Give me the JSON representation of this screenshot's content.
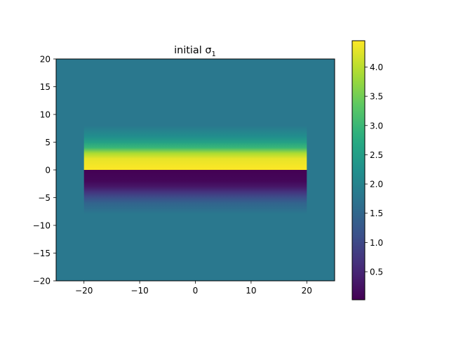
{
  "chart_data": {
    "type": "heatmap",
    "title": "initial σ",
    "title_subscript": "1",
    "xlabel": "",
    "ylabel": "",
    "xlim": [
      -25,
      25
    ],
    "ylim": [
      -20,
      20
    ],
    "x_ticks": [
      -20,
      -10,
      0,
      10,
      20
    ],
    "x_tick_labels": [
      "−20",
      "−10",
      "0",
      "10",
      "20"
    ],
    "y_ticks": [
      -20,
      -15,
      -10,
      -5,
      0,
      5,
      10,
      15,
      20
    ],
    "y_tick_labels": [
      "−20",
      "−15",
      "−10",
      "−5",
      "0",
      "5",
      "10",
      "15",
      "20"
    ],
    "colormap": "viridis",
    "background_value": 1.8,
    "strip": {
      "x_range": [
        -20,
        20
      ],
      "y_range": [
        -8,
        8
      ],
      "upper_profile": [
        {
          "y": 0,
          "value": 4.45
        },
        {
          "y": 2,
          "value": 4.3
        },
        {
          "y": 3,
          "value": 3.9
        },
        {
          "y": 4,
          "value": 3.0
        },
        {
          "y": 5,
          "value": 2.55
        },
        {
          "y": 6,
          "value": 2.2
        },
        {
          "y": 8,
          "value": 1.8
        }
      ],
      "lower_profile": [
        {
          "y": 0,
          "value": 0.02
        },
        {
          "y": -2,
          "value": 0.1
        },
        {
          "y": -3,
          "value": 0.3
        },
        {
          "y": -4,
          "value": 0.7
        },
        {
          "y": -5,
          "value": 1.1
        },
        {
          "y": -6,
          "value": 1.45
        },
        {
          "y": -8,
          "value": 1.8
        }
      ]
    },
    "colorbar": {
      "range": [
        0.02,
        4.45
      ],
      "ticks": [
        0.5,
        1.0,
        1.5,
        2.0,
        2.5,
        3.0,
        3.5,
        4.0
      ],
      "tick_labels": [
        "0.5",
        "1.0",
        "1.5",
        "2.0",
        "2.5",
        "3.0",
        "3.5",
        "4.0"
      ]
    }
  }
}
